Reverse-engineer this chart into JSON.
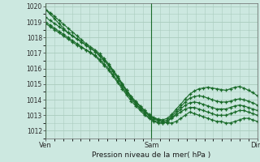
{
  "title": "",
  "xlabel": "Pression niveau de la mer( hPa )",
  "bg_color": "#cce8e0",
  "grid_color": "#aaccbe",
  "line_color": "#1a6b2a",
  "xlim": [
    0,
    48
  ],
  "ylim": [
    1011.5,
    1020.2
  ],
  "yticks": [
    1012,
    1013,
    1014,
    1015,
    1016,
    1017,
    1018,
    1019,
    1020
  ],
  "xtick_labels": [
    "Ven",
    "Sam",
    "Dim"
  ],
  "xtick_positions": [
    0,
    24,
    48
  ],
  "vlines": [
    0,
    24,
    48
  ],
  "series": [
    [
      1019.8,
      1019.5,
      1019.2,
      1018.9,
      1018.6,
      1018.3,
      1018.1,
      1017.9,
      1017.7,
      1017.5,
      1017.3,
      1017.1,
      1016.8,
      1016.5,
      1016.2,
      1015.8,
      1015.4,
      1015.0,
      1014.6,
      1014.2,
      1013.9,
      1013.6,
      1013.3,
      1013.0,
      1012.8,
      1012.7,
      1012.6,
      1012.5,
      1012.5,
      1012.6,
      1012.8,
      1013.0,
      1013.2,
      1013.1,
      1013.0,
      1012.9,
      1012.8,
      1012.7,
      1012.6,
      1012.6,
      1012.5,
      1012.5,
      1012.6,
      1012.7,
      1012.8,
      1012.8,
      1012.7,
      1012.6
    ],
    [
      1019.0,
      1018.8,
      1018.6,
      1018.4,
      1018.2,
      1018.0,
      1017.8,
      1017.6,
      1017.4,
      1017.2,
      1017.0,
      1016.8,
      1016.5,
      1016.2,
      1015.9,
      1015.5,
      1015.1,
      1014.7,
      1014.3,
      1013.9,
      1013.6,
      1013.3,
      1013.0,
      1012.8,
      1012.6,
      1012.5,
      1012.5,
      1012.6,
      1012.8,
      1013.0,
      1013.2,
      1013.4,
      1013.5,
      1013.5,
      1013.4,
      1013.3,
      1013.2,
      1013.1,
      1013.0,
      1013.0,
      1013.0,
      1013.1,
      1013.2,
      1013.3,
      1013.3,
      1013.2,
      1013.1,
      1013.0
    ],
    [
      1018.9,
      1018.7,
      1018.5,
      1018.3,
      1018.1,
      1017.9,
      1017.7,
      1017.5,
      1017.35,
      1017.2,
      1017.05,
      1016.85,
      1016.6,
      1016.3,
      1016.0,
      1015.6,
      1015.2,
      1014.8,
      1014.4,
      1014.05,
      1013.7,
      1013.4,
      1013.1,
      1012.85,
      1012.65,
      1012.55,
      1012.5,
      1012.6,
      1012.85,
      1013.1,
      1013.4,
      1013.65,
      1013.8,
      1013.85,
      1013.8,
      1013.7,
      1013.6,
      1013.5,
      1013.4,
      1013.4,
      1013.4,
      1013.5,
      1013.6,
      1013.65,
      1013.6,
      1013.5,
      1013.4,
      1013.3
    ],
    [
      1019.3,
      1019.1,
      1018.9,
      1018.7,
      1018.5,
      1018.3,
      1018.1,
      1017.9,
      1017.7,
      1017.5,
      1017.3,
      1017.1,
      1016.85,
      1016.55,
      1016.2,
      1015.8,
      1015.4,
      1014.95,
      1014.5,
      1014.1,
      1013.75,
      1013.45,
      1013.2,
      1012.95,
      1012.75,
      1012.65,
      1012.6,
      1012.7,
      1012.95,
      1013.25,
      1013.55,
      1013.85,
      1014.1,
      1014.2,
      1014.25,
      1014.2,
      1014.1,
      1014.0,
      1013.9,
      1013.85,
      1013.85,
      1013.9,
      1014.0,
      1014.05,
      1014.0,
      1013.9,
      1013.8,
      1013.65
    ],
    [
      1019.8,
      1019.6,
      1019.35,
      1019.1,
      1018.85,
      1018.6,
      1018.35,
      1018.1,
      1017.85,
      1017.6,
      1017.4,
      1017.2,
      1016.95,
      1016.65,
      1016.3,
      1015.9,
      1015.5,
      1015.05,
      1014.6,
      1014.2,
      1013.85,
      1013.55,
      1013.3,
      1013.05,
      1012.85,
      1012.75,
      1012.7,
      1012.8,
      1013.05,
      1013.4,
      1013.7,
      1014.05,
      1014.35,
      1014.55,
      1014.7,
      1014.75,
      1014.8,
      1014.75,
      1014.7,
      1014.65,
      1014.6,
      1014.7,
      1014.8,
      1014.85,
      1014.75,
      1014.6,
      1014.45,
      1014.25
    ]
  ]
}
